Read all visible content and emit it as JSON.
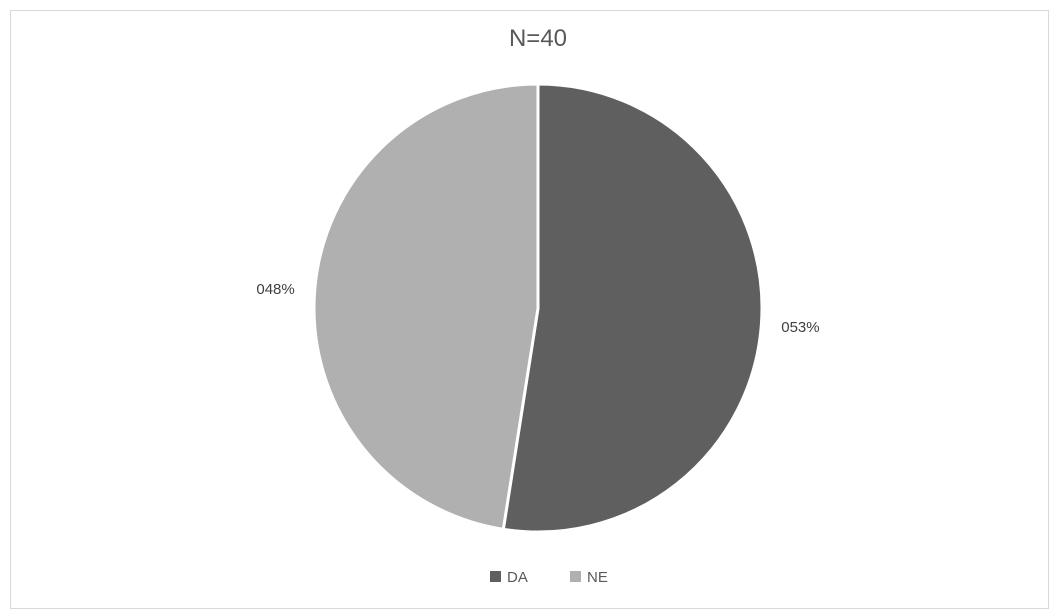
{
  "chart_data": {
    "type": "pie",
    "title": "N=40",
    "categories": [
      "DA",
      "NE"
    ],
    "values": [
      53,
      48
    ],
    "data_labels": [
      "053%",
      "048%"
    ],
    "colors": [
      "#5f5f5f",
      "#b0b0b0"
    ],
    "legend_position": "bottom"
  }
}
